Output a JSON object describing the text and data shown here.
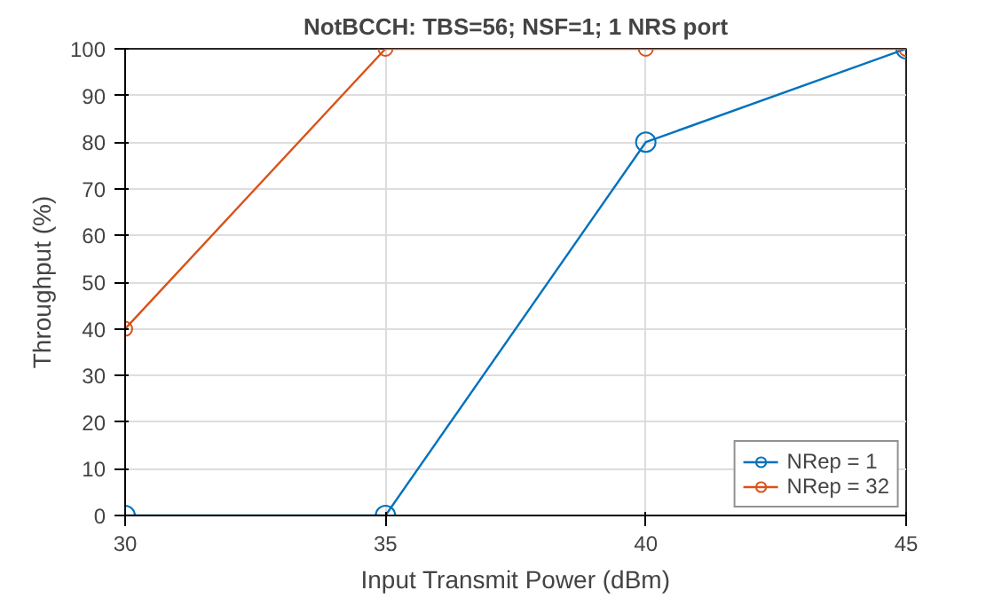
{
  "chart_data": {
    "type": "line",
    "title": "NotBCCH: TBS=56; NSF=1; 1 NRS port",
    "xlabel": "Input Transmit Power (dBm)",
    "ylabel": "Throughput (%)",
    "x": [
      30,
      35,
      40,
      45
    ],
    "series": [
      {
        "name": "NRep = 1",
        "color": "#0072bd",
        "values": [
          0,
          0,
          80,
          100
        ]
      },
      {
        "name": "NRep = 32",
        "color": "#d95319",
        "values": [
          40,
          100,
          100,
          100
        ]
      }
    ],
    "xlim": [
      30,
      45
    ],
    "xticks": [
      30,
      35,
      40,
      45
    ],
    "ylim": [
      0,
      100
    ],
    "yticks": [
      0,
      10,
      20,
      30,
      40,
      50,
      60,
      70,
      80,
      90,
      100
    ],
    "grid": true,
    "legend": "bottom right",
    "marker": "circle",
    "line_style": "solid"
  }
}
